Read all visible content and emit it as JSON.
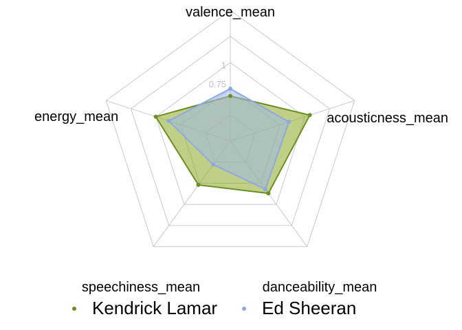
{
  "chart_data": {
    "type": "radar",
    "axes": [
      "valence_mean",
      "acousticness_mean",
      "danceability_mean",
      "speechiness_mean",
      "energy_mean"
    ],
    "ticks": [
      0,
      0.25,
      0.5,
      0.75,
      1
    ],
    "tick_labels": [
      "0",
      "0.25",
      "0.5",
      "0.75",
      "1"
    ],
    "range": [
      0,
      1
    ],
    "grid": true,
    "legend_position": "bottom",
    "series": [
      {
        "name": "Kendrick Lamar",
        "values": [
          0.43,
          0.8,
          0.62,
          0.52,
          0.75
        ],
        "color": "#6b8e23",
        "fill": "#8aaa22"
      },
      {
        "name": "Ed Sheeran",
        "values": [
          0.5,
          0.59,
          0.57,
          0.28,
          0.62
        ],
        "color": "#8fa8e0",
        "fill": "#9fb7e8"
      }
    ]
  }
}
